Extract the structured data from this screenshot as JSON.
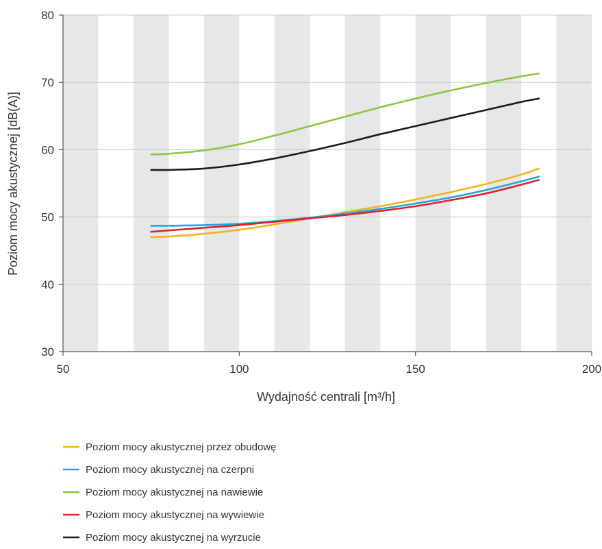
{
  "chart_data": {
    "type": "line",
    "title": "",
    "xlabel": "Wydajność centrali [m³/h]",
    "ylabel": "Poziom mocy akustycznej [dB(A)]",
    "xlim": [
      50,
      200
    ],
    "ylim": [
      30,
      80
    ],
    "xticks": [
      50,
      100,
      150,
      200
    ],
    "yticks": [
      30,
      40,
      50,
      60,
      70,
      80
    ],
    "grid": "horizontal lines with alternating vertical gray bands every 10 m³/h",
    "band_color": "#e6e7e8",
    "legend_position": "bottom",
    "series": [
      {
        "name": "Poziom mocy akustycznej przez obudowę",
        "color": "#f5b21c",
        "points": [
          [
            75,
            47.0
          ],
          [
            80,
            47.1
          ],
          [
            90,
            47.5
          ],
          [
            100,
            48.1
          ],
          [
            110,
            48.9
          ],
          [
            120,
            49.8
          ],
          [
            130,
            50.7
          ],
          [
            140,
            51.6
          ],
          [
            150,
            52.6
          ],
          [
            160,
            53.7
          ],
          [
            170,
            54.9
          ],
          [
            180,
            56.3
          ],
          [
            185,
            57.2
          ]
        ]
      },
      {
        "name": "Poziom mocy akustycznej na czerpni",
        "color": "#1ba9e1",
        "points": [
          [
            75,
            48.7
          ],
          [
            80,
            48.7
          ],
          [
            90,
            48.8
          ],
          [
            100,
            49.0
          ],
          [
            110,
            49.4
          ],
          [
            120,
            49.9
          ],
          [
            130,
            50.5
          ],
          [
            140,
            51.2
          ],
          [
            150,
            52.0
          ],
          [
            160,
            52.9
          ],
          [
            170,
            54.0
          ],
          [
            180,
            55.3
          ],
          [
            185,
            56.0
          ]
        ]
      },
      {
        "name": "Poziom mocy akustycznej na nawiewie",
        "color": "#8dc63f",
        "points": [
          [
            75,
            59.3
          ],
          [
            80,
            59.4
          ],
          [
            90,
            59.9
          ],
          [
            100,
            60.8
          ],
          [
            110,
            62.1
          ],
          [
            120,
            63.5
          ],
          [
            130,
            64.9
          ],
          [
            140,
            66.3
          ],
          [
            150,
            67.6
          ],
          [
            160,
            68.8
          ],
          [
            170,
            69.9
          ],
          [
            180,
            70.9
          ],
          [
            185,
            71.3
          ]
        ]
      },
      {
        "name": "Poziom mocy akustycznej na wywiewie",
        "color": "#e3202a",
        "points": [
          [
            75,
            47.8
          ],
          [
            80,
            48.0
          ],
          [
            90,
            48.4
          ],
          [
            100,
            48.8
          ],
          [
            110,
            49.3
          ],
          [
            120,
            49.8
          ],
          [
            130,
            50.3
          ],
          [
            140,
            50.9
          ],
          [
            150,
            51.6
          ],
          [
            160,
            52.5
          ],
          [
            170,
            53.5
          ],
          [
            180,
            54.8
          ],
          [
            185,
            55.5
          ]
        ]
      },
      {
        "name": "Poziom mocy akustycznej na wyrzucie",
        "color": "#1a1a1a",
        "points": [
          [
            75,
            57.0
          ],
          [
            80,
            57.0
          ],
          [
            90,
            57.2
          ],
          [
            100,
            57.8
          ],
          [
            110,
            58.7
          ],
          [
            120,
            59.8
          ],
          [
            130,
            61.0
          ],
          [
            140,
            62.3
          ],
          [
            150,
            63.5
          ],
          [
            160,
            64.7
          ],
          [
            170,
            65.9
          ],
          [
            180,
            67.1
          ],
          [
            185,
            67.6
          ]
        ]
      }
    ]
  }
}
